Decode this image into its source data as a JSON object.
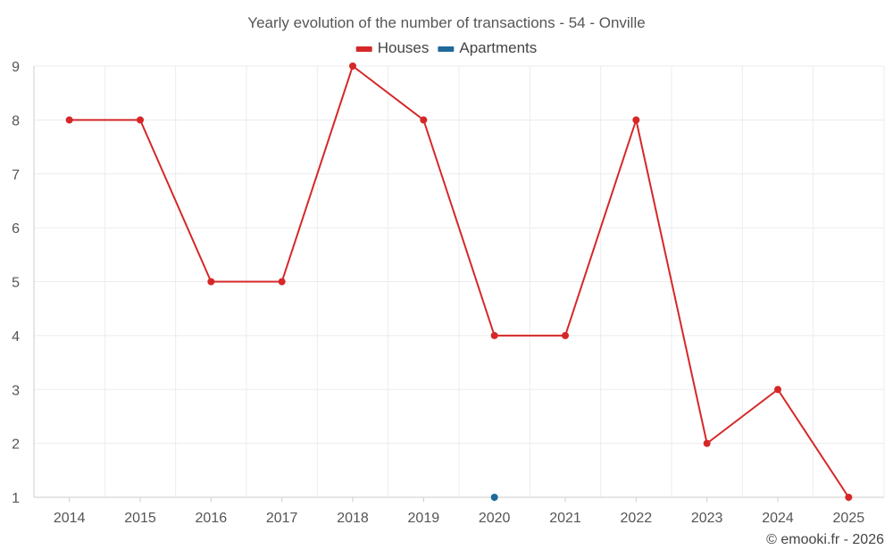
{
  "chart_data": {
    "type": "line",
    "title": "Yearly evolution of the number of transactions - 54 - Onville",
    "xlabel": "",
    "ylabel": "",
    "categories": [
      "2014",
      "2015",
      "2016",
      "2017",
      "2018",
      "2019",
      "2020",
      "2021",
      "2022",
      "2023",
      "2024",
      "2025"
    ],
    "ylim": [
      1,
      9
    ],
    "yticks": [
      1,
      2,
      3,
      4,
      5,
      6,
      7,
      8,
      9
    ],
    "grid": true,
    "legend_position": "top-center",
    "series": [
      {
        "name": "Houses",
        "color": "#d62728",
        "values": [
          8,
          8,
          5,
          5,
          9,
          8,
          4,
          4,
          8,
          2,
          3,
          1
        ]
      },
      {
        "name": "Apartments",
        "color": "#1f6a9a",
        "values": [
          null,
          null,
          null,
          null,
          null,
          null,
          1,
          null,
          null,
          null,
          null,
          null
        ]
      }
    ]
  },
  "credit": "© emooki.fr - 2026"
}
